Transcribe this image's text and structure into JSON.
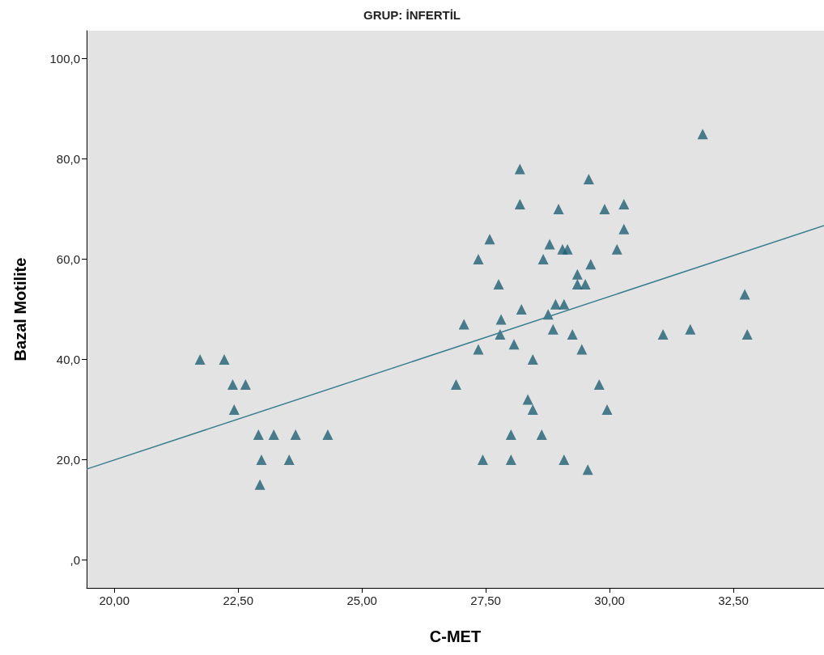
{
  "chart_data": {
    "type": "scatter",
    "title": "GRUP: İNFERTİL",
    "xlabel": "C-MET",
    "ylabel": "Bazal Motilite",
    "xlim": [
      19.44,
      34.33
    ],
    "ylim": [
      -5.6,
      105.6
    ],
    "xticks": [
      {
        "value": 20,
        "label": "20,00"
      },
      {
        "value": 22.5,
        "label": "22,50"
      },
      {
        "value": 25,
        "label": "25,00"
      },
      {
        "value": 27.5,
        "label": "27,50"
      },
      {
        "value": 30,
        "label": "30,00"
      },
      {
        "value": 32.5,
        "label": "32,50"
      }
    ],
    "yticks": [
      {
        "value": 0,
        "label": ",0"
      },
      {
        "value": 20,
        "label": "20,0"
      },
      {
        "value": 40,
        "label": "40,0"
      },
      {
        "value": 60,
        "label": "60,0"
      },
      {
        "value": 80,
        "label": "80,0"
      },
      {
        "value": 100,
        "label": "100,0"
      }
    ],
    "grid": false,
    "marker": "triangle",
    "series": [
      {
        "color": "#1f5f73",
        "x": [
          21.73,
          22.22,
          22.39,
          22.65,
          22.42,
          22.91,
          23.22,
          23.66,
          22.97,
          23.53,
          22.94,
          24.31,
          26.9,
          27.06,
          27.35,
          27.35,
          27.44,
          27.58,
          27.76,
          27.81,
          27.79,
          28.07,
          28.01,
          28.01,
          28.19,
          28.19,
          28.22,
          28.35,
          28.45,
          28.45,
          28.66,
          28.63,
          28.79,
          28.76,
          28.86,
          28.91,
          28.97,
          29.08,
          29.05,
          29.15,
          29.08,
          29.25,
          29.35,
          29.35,
          29.51,
          29.44,
          29.58,
          29.62,
          29.56,
          29.79,
          29.9,
          29.95,
          30.15,
          30.29,
          30.29,
          31.08,
          31.63,
          31.88,
          32.73,
          32.78
        ],
        "values": [
          40,
          40,
          35,
          35,
          30,
          25,
          25,
          25,
          20,
          20,
          15,
          25,
          35,
          47,
          60,
          42,
          20,
          64,
          55,
          48,
          45,
          43,
          25,
          20,
          78,
          71,
          50,
          32,
          30,
          40,
          60,
          25,
          63,
          49,
          46,
          51,
          70,
          51,
          62,
          62,
          20,
          45,
          57,
          55,
          55,
          42,
          76,
          59,
          18,
          35,
          70,
          30,
          62,
          71,
          66,
          45,
          46,
          85,
          53,
          45
        ]
      },
      {
        "type": "line",
        "color": "#3a7f8f",
        "x": [
          19.44,
          34.33
        ],
        "values": [
          18.1,
          66.7
        ],
        "marker": "none"
      }
    ]
  }
}
